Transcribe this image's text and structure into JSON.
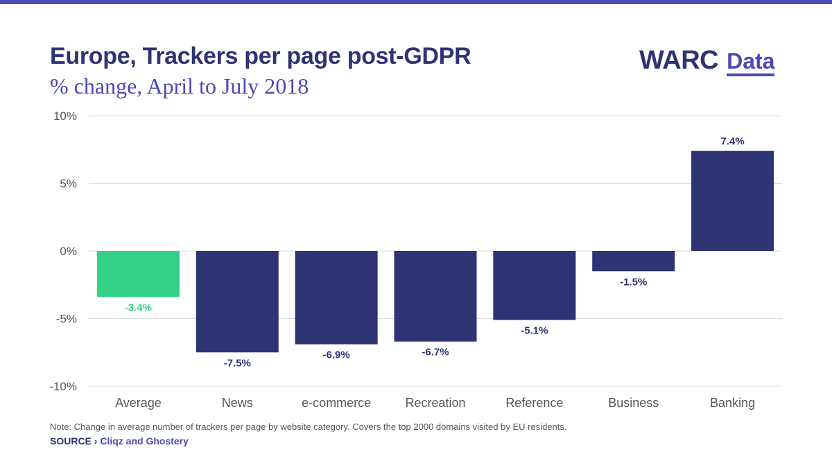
{
  "header": {
    "title": "Europe, Trackers per page post-GDPR",
    "subtitle": "% change, April to July 2018"
  },
  "logo": {
    "primary": "WARC",
    "secondary": "Data"
  },
  "footer": {
    "note": "Note: Change in average number of trackers per page by website category. Covers the top 2000 domains visited by EU residents.",
    "source_label": "SOURCE ›",
    "source_value": "Cliqz and Ghostery"
  },
  "colors": {
    "accent_rule": "#4a49b8",
    "bar_default": "#2e3374",
    "bar_highlight": "#33d186",
    "title": "#2e3374",
    "subtitle": "#4a49b8",
    "grid": "#dddddd",
    "tick_text": "#555555"
  },
  "chart_data": {
    "type": "bar",
    "title": "Europe, Trackers per page post-GDPR",
    "subtitle": "% change, April to July 2018",
    "xlabel": "",
    "ylabel": "",
    "categories": [
      "Average",
      "News",
      "e-commerce",
      "Recreation",
      "Reference",
      "Business",
      "Banking"
    ],
    "values": [
      -3.4,
      -7.5,
      -6.9,
      -6.7,
      -5.1,
      -1.5,
      7.4
    ],
    "value_labels": [
      "-3.4%",
      "-7.5%",
      "-6.9%",
      "-6.7%",
      "-5.1%",
      "-1.5%",
      "7.4%"
    ],
    "highlight_index": 0,
    "ylim": [
      -10,
      10
    ],
    "yticks": [
      10,
      5,
      0,
      -5,
      -10
    ],
    "ytick_labels": [
      "10%",
      "5%",
      "0%",
      "-5%",
      "-10%"
    ],
    "grid": true,
    "legend": "none"
  }
}
